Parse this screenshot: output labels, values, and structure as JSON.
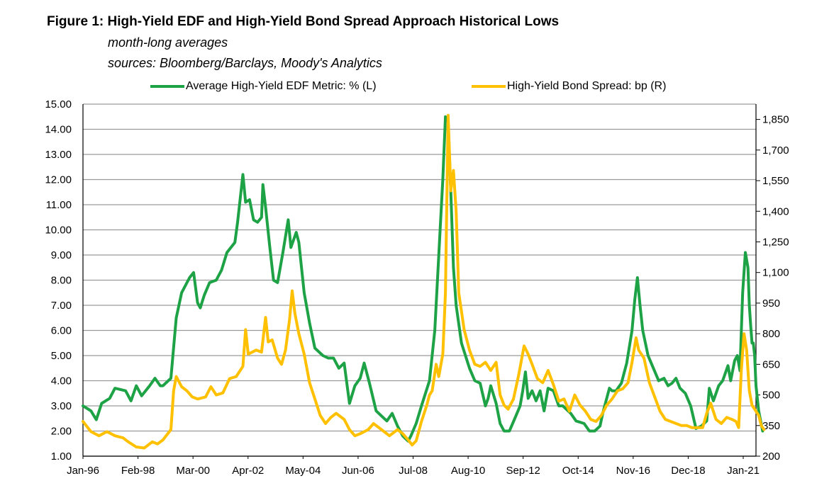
{
  "chart_data": {
    "type": "line",
    "title": "Figure 1: High-Yield EDF and High-Yield Bond Spread Approach Historical Lows",
    "subtitle_lines": [
      "month-long averages",
      "sources: Bloomberg/Barclays, Moody's Analytics"
    ],
    "x_tick_labels": [
      "Jan-96",
      "Feb-98",
      "Mar-00",
      "Apr-02",
      "May-04",
      "Jun-06",
      "Jul-08",
      "Aug-10",
      "Sep-12",
      "Oct-14",
      "Nov-16",
      "Dec-18",
      "Jan-21"
    ],
    "x_range": [
      1996.0,
      2021.25
    ],
    "left_axis": {
      "range": [
        1,
        15
      ],
      "tick_labels": [
        "1.00",
        "2.00",
        "3.00",
        "4.00",
        "5.00",
        "6.00",
        "7.00",
        "8.00",
        "9.00",
        "10.00",
        "11.00",
        "12.00",
        "13.00",
        "14.00",
        "15.00"
      ]
    },
    "right_axis": {
      "range": [
        200,
        1925
      ],
      "tick_labels": [
        "200",
        "350",
        "500",
        "650",
        "800",
        "950",
        "1,100",
        "1,250",
        "1,400",
        "1,550",
        "1,700",
        "1,850"
      ],
      "tick_values": [
        200,
        350,
        500,
        650,
        800,
        950,
        1100,
        1250,
        1400,
        1550,
        1700,
        1850
      ]
    },
    "grid": true,
    "legend_position": "top",
    "series": [
      {
        "name": "Average High-Yield EDF Metric: % (L)",
        "axis": "left",
        "color": "#1EA246",
        "points": [
          [
            1996.0,
            3.0
          ],
          [
            1996.3,
            2.8
          ],
          [
            1996.5,
            2.45
          ],
          [
            1996.7,
            3.1
          ],
          [
            1997.0,
            3.3
          ],
          [
            1997.2,
            3.7
          ],
          [
            1997.6,
            3.6
          ],
          [
            1997.8,
            3.2
          ],
          [
            1998.0,
            3.8
          ],
          [
            1998.2,
            3.4
          ],
          [
            1998.5,
            3.8
          ],
          [
            1998.7,
            4.1
          ],
          [
            1998.9,
            3.8
          ],
          [
            1999.0,
            3.8
          ],
          [
            1999.3,
            4.1
          ],
          [
            1999.5,
            6.5
          ],
          [
            1999.7,
            7.5
          ],
          [
            1999.9,
            7.9
          ],
          [
            2000.0,
            8.1
          ],
          [
            2000.15,
            8.3
          ],
          [
            2000.3,
            7.1
          ],
          [
            2000.4,
            6.9
          ],
          [
            2000.55,
            7.4
          ],
          [
            2000.75,
            7.9
          ],
          [
            2001.0,
            8.0
          ],
          [
            2001.2,
            8.4
          ],
          [
            2001.4,
            9.1
          ],
          [
            2001.55,
            9.3
          ],
          [
            2001.7,
            9.5
          ],
          [
            2001.8,
            10.3
          ],
          [
            2002.0,
            12.2
          ],
          [
            2002.1,
            11.1
          ],
          [
            2002.25,
            11.2
          ],
          [
            2002.4,
            10.4
          ],
          [
            2002.55,
            10.3
          ],
          [
            2002.7,
            10.5
          ],
          [
            2002.75,
            11.8
          ],
          [
            2002.85,
            10.9
          ],
          [
            2003.0,
            9.4
          ],
          [
            2003.15,
            8.0
          ],
          [
            2003.3,
            7.9
          ],
          [
            2003.5,
            9.1
          ],
          [
            2003.7,
            10.4
          ],
          [
            2003.8,
            9.3
          ],
          [
            2004.0,
            9.9
          ],
          [
            2004.1,
            9.5
          ],
          [
            2004.3,
            7.5
          ],
          [
            2004.5,
            6.3
          ],
          [
            2004.7,
            5.3
          ],
          [
            2005.0,
            5.0
          ],
          [
            2005.2,
            4.9
          ],
          [
            2005.4,
            4.9
          ],
          [
            2005.6,
            4.5
          ],
          [
            2005.8,
            4.7
          ],
          [
            2006.0,
            3.1
          ],
          [
            2006.2,
            3.8
          ],
          [
            2006.4,
            4.1
          ],
          [
            2006.55,
            4.7
          ],
          [
            2006.75,
            3.9
          ],
          [
            2007.0,
            2.8
          ],
          [
            2007.2,
            2.6
          ],
          [
            2007.4,
            2.4
          ],
          [
            2007.6,
            2.7
          ],
          [
            2007.8,
            2.2
          ],
          [
            2008.0,
            1.8
          ],
          [
            2008.2,
            1.6
          ],
          [
            2008.3,
            1.8
          ],
          [
            2008.5,
            2.3
          ],
          [
            2008.7,
            3.0
          ],
          [
            2009.0,
            4.0
          ],
          [
            2009.2,
            6.0
          ],
          [
            2009.4,
            10.0
          ],
          [
            2009.5,
            12.0
          ],
          [
            2009.6,
            14.5
          ],
          [
            2009.7,
            14.3
          ],
          [
            2009.8,
            11.5
          ],
          [
            2009.9,
            8.5
          ],
          [
            2010.0,
            7.0
          ],
          [
            2010.2,
            5.5
          ],
          [
            2010.5,
            4.5
          ],
          [
            2010.7,
            4.0
          ],
          [
            2010.9,
            3.9
          ],
          [
            2011.1,
            3.0
          ],
          [
            2011.2,
            3.3
          ],
          [
            2011.3,
            3.8
          ],
          [
            2011.5,
            3.1
          ],
          [
            2011.65,
            2.3
          ],
          [
            2011.8,
            2.0
          ],
          [
            2012.0,
            2.0
          ],
          [
            2012.2,
            2.5
          ],
          [
            2012.4,
            3.0
          ],
          [
            2012.5,
            3.6
          ],
          [
            2012.6,
            4.35
          ],
          [
            2012.7,
            3.3
          ],
          [
            2012.85,
            3.6
          ],
          [
            2013.0,
            3.2
          ],
          [
            2013.15,
            3.6
          ],
          [
            2013.3,
            2.8
          ],
          [
            2013.45,
            3.7
          ],
          [
            2013.65,
            3.6
          ],
          [
            2013.85,
            3.0
          ],
          [
            2014.0,
            3.0
          ],
          [
            2014.3,
            2.7
          ],
          [
            2014.5,
            2.4
          ],
          [
            2014.8,
            2.3
          ],
          [
            2015.0,
            2.0
          ],
          [
            2015.2,
            2.0
          ],
          [
            2015.4,
            2.2
          ],
          [
            2015.5,
            2.7
          ],
          [
            2015.6,
            3.1
          ],
          [
            2015.75,
            3.7
          ],
          [
            2015.85,
            3.6
          ],
          [
            2016.0,
            3.6
          ],
          [
            2016.2,
            3.9
          ],
          [
            2016.4,
            4.7
          ],
          [
            2016.6,
            6.0
          ],
          [
            2016.7,
            7.2
          ],
          [
            2016.8,
            8.1
          ],
          [
            2016.9,
            7.0
          ],
          [
            2017.0,
            6.0
          ],
          [
            2017.2,
            5.0
          ],
          [
            2017.4,
            4.5
          ],
          [
            2017.6,
            4.0
          ],
          [
            2017.8,
            4.1
          ],
          [
            2017.95,
            3.8
          ],
          [
            2018.1,
            3.9
          ],
          [
            2018.25,
            4.1
          ],
          [
            2018.4,
            3.7
          ],
          [
            2018.6,
            3.5
          ],
          [
            2018.8,
            3.0
          ],
          [
            2019.0,
            2.1
          ],
          [
            2019.2,
            2.2
          ],
          [
            2019.4,
            2.4
          ],
          [
            2019.5,
            3.7
          ],
          [
            2019.65,
            3.2
          ],
          [
            2019.85,
            3.8
          ],
          [
            2020.0,
            4.0
          ],
          [
            2020.2,
            4.6
          ],
          [
            2020.3,
            4.0
          ],
          [
            2020.45,
            4.8
          ],
          [
            2020.55,
            5.0
          ],
          [
            2020.65,
            4.4
          ],
          [
            2020.75,
            7.5
          ],
          [
            2020.85,
            9.1
          ],
          [
            2020.95,
            8.5
          ],
          [
            2021.0,
            7.0
          ],
          [
            2021.05,
            6.2
          ],
          [
            2021.1,
            5.5
          ],
          [
            2021.15,
            5.5
          ],
          [
            2021.2,
            5.0
          ],
          [
            2021.25,
            3.8
          ],
          [
            2021.35,
            2.8
          ],
          [
            2021.5,
            2.0
          ]
        ]
      },
      {
        "name": "High-Yield Bond Spread: bp (R)",
        "axis": "right",
        "color": "#FFC000",
        "points": [
          [
            1996.0,
            370
          ],
          [
            1996.3,
            320
          ],
          [
            1996.6,
            300
          ],
          [
            1996.9,
            320
          ],
          [
            1997.2,
            300
          ],
          [
            1997.5,
            290
          ],
          [
            1997.7,
            270
          ],
          [
            1998.0,
            245
          ],
          [
            1998.3,
            240
          ],
          [
            1998.6,
            270
          ],
          [
            1998.8,
            260
          ],
          [
            1999.0,
            280
          ],
          [
            1999.3,
            330
          ],
          [
            1999.4,
            520
          ],
          [
            1999.5,
            590
          ],
          [
            1999.7,
            540
          ],
          [
            1999.9,
            520
          ],
          [
            2000.1,
            490
          ],
          [
            2000.3,
            480
          ],
          [
            2000.6,
            490
          ],
          [
            2000.8,
            540
          ],
          [
            2001.0,
            500
          ],
          [
            2001.25,
            510
          ],
          [
            2001.5,
            580
          ],
          [
            2001.75,
            590
          ],
          [
            2002.0,
            640
          ],
          [
            2002.1,
            820
          ],
          [
            2002.2,
            700
          ],
          [
            2002.35,
            710
          ],
          [
            2002.5,
            720
          ],
          [
            2002.7,
            710
          ],
          [
            2002.85,
            880
          ],
          [
            2002.95,
            760
          ],
          [
            2003.1,
            770
          ],
          [
            2003.3,
            680
          ],
          [
            2003.45,
            650
          ],
          [
            2003.6,
            720
          ],
          [
            2003.75,
            870
          ],
          [
            2003.85,
            1010
          ],
          [
            2003.95,
            900
          ],
          [
            2004.1,
            800
          ],
          [
            2004.3,
            700
          ],
          [
            2004.5,
            560
          ],
          [
            2004.7,
            480
          ],
          [
            2004.9,
            400
          ],
          [
            2005.1,
            360
          ],
          [
            2005.3,
            390
          ],
          [
            2005.5,
            410
          ],
          [
            2005.8,
            380
          ],
          [
            2006.0,
            330
          ],
          [
            2006.2,
            300
          ],
          [
            2006.4,
            310
          ],
          [
            2006.7,
            330
          ],
          [
            2006.9,
            360
          ],
          [
            2007.2,
            330
          ],
          [
            2007.5,
            300
          ],
          [
            2007.8,
            330
          ],
          [
            2008.0,
            310
          ],
          [
            2008.2,
            280
          ],
          [
            2008.35,
            255
          ],
          [
            2008.5,
            275
          ],
          [
            2008.7,
            370
          ],
          [
            2008.9,
            450
          ],
          [
            2009.0,
            500
          ],
          [
            2009.1,
            520
          ],
          [
            2009.25,
            650
          ],
          [
            2009.35,
            590
          ],
          [
            2009.5,
            700
          ],
          [
            2009.6,
            1000
          ],
          [
            2009.7,
            1870
          ],
          [
            2009.8,
            1500
          ],
          [
            2009.9,
            1600
          ],
          [
            2010.0,
            1400
          ],
          [
            2010.1,
            1000
          ],
          [
            2010.3,
            820
          ],
          [
            2010.5,
            720
          ],
          [
            2010.7,
            650
          ],
          [
            2010.9,
            640
          ],
          [
            2011.1,
            660
          ],
          [
            2011.3,
            620
          ],
          [
            2011.5,
            660
          ],
          [
            2011.65,
            500
          ],
          [
            2011.8,
            450
          ],
          [
            2011.95,
            430
          ],
          [
            2012.15,
            480
          ],
          [
            2012.35,
            600
          ],
          [
            2012.55,
            740
          ],
          [
            2012.7,
            700
          ],
          [
            2012.85,
            650
          ],
          [
            2013.05,
            580
          ],
          [
            2013.25,
            560
          ],
          [
            2013.45,
            620
          ],
          [
            2013.65,
            550
          ],
          [
            2013.85,
            470
          ],
          [
            2014.05,
            480
          ],
          [
            2014.25,
            420
          ],
          [
            2014.45,
            500
          ],
          [
            2014.65,
            450
          ],
          [
            2014.85,
            420
          ],
          [
            2015.05,
            380
          ],
          [
            2015.25,
            370
          ],
          [
            2015.45,
            400
          ],
          [
            2015.65,
            450
          ],
          [
            2015.85,
            480
          ],
          [
            2016.05,
            520
          ],
          [
            2016.25,
            530
          ],
          [
            2016.45,
            560
          ],
          [
            2016.6,
            660
          ],
          [
            2016.75,
            780
          ],
          [
            2016.85,
            720
          ],
          [
            2017.05,
            680
          ],
          [
            2017.25,
            560
          ],
          [
            2017.45,
            490
          ],
          [
            2017.65,
            420
          ],
          [
            2017.85,
            380
          ],
          [
            2018.05,
            370
          ],
          [
            2018.25,
            360
          ],
          [
            2018.45,
            350
          ],
          [
            2018.65,
            350
          ],
          [
            2018.85,
            340
          ],
          [
            2019.05,
            340
          ],
          [
            2019.25,
            340
          ],
          [
            2019.4,
            410
          ],
          [
            2019.55,
            460
          ],
          [
            2019.75,
            380
          ],
          [
            2019.95,
            360
          ],
          [
            2020.15,
            390
          ],
          [
            2020.35,
            380
          ],
          [
            2020.5,
            370
          ],
          [
            2020.6,
            340
          ],
          [
            2020.7,
            620
          ],
          [
            2020.8,
            800
          ],
          [
            2020.9,
            720
          ],
          [
            2021.0,
            520
          ],
          [
            2021.1,
            450
          ],
          [
            2021.25,
            420
          ],
          [
            2021.35,
            400
          ],
          [
            2021.45,
            350
          ],
          [
            2021.55,
            330
          ]
        ]
      }
    ]
  }
}
